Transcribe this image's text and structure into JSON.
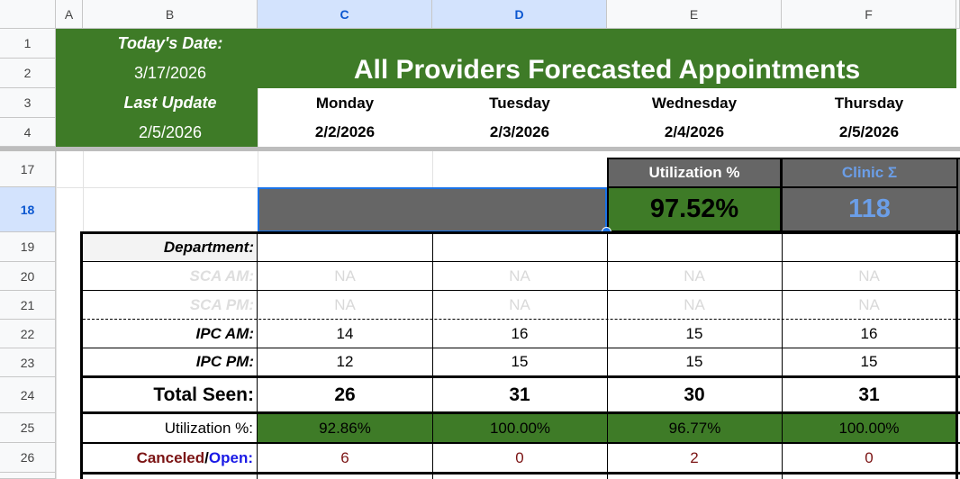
{
  "sheet": {
    "column_headers": [
      "A",
      "B",
      "C",
      "D",
      "E",
      "F"
    ],
    "row_headers": [
      "1",
      "2",
      "3",
      "4",
      "17",
      "18",
      "19",
      "20",
      "21",
      "22",
      "23",
      "24",
      "25",
      "26"
    ]
  },
  "header": {
    "todays_date_label": "Today's Date:",
    "todays_date_value": "3/17/2026",
    "last_update_label": "Last Update",
    "last_update_value": "2/5/2026",
    "title": "All Providers Forecasted Appointments",
    "days": [
      {
        "name": "Monday",
        "date": "2/2/2026"
      },
      {
        "name": "Tuesday",
        "date": "2/3/2026"
      },
      {
        "name": "Wednesday",
        "date": "2/4/2026"
      },
      {
        "name": "Thursday",
        "date": "2/5/2026"
      }
    ]
  },
  "summary": {
    "utilization_label": "Utilization %",
    "utilization_value": "97.52%",
    "clinic_label": "Clinic Σ",
    "clinic_value": "118"
  },
  "table": {
    "department_label": "Department:",
    "rows": [
      {
        "label": "SCA AM:",
        "values": [
          "NA",
          "NA",
          "NA",
          "NA"
        ]
      },
      {
        "label": "SCA PM:",
        "values": [
          "NA",
          "NA",
          "NA",
          "NA"
        ]
      },
      {
        "label": "IPC AM:",
        "values": [
          "14",
          "16",
          "15",
          "16"
        ]
      },
      {
        "label": "IPC PM:",
        "values": [
          "12",
          "15",
          "15",
          "15"
        ]
      }
    ],
    "total_label": "Total Seen:",
    "totals": [
      "26",
      "31",
      "30",
      "31"
    ],
    "utilization_label": "Utilization %:",
    "utilization": [
      "92.86%",
      "100.00%",
      "96.77%",
      "100.00%"
    ],
    "canceled_label": "Canceled",
    "slash": "/",
    "open_label": "Open:",
    "canceled_open": [
      "6",
      "0",
      "2",
      "0"
    ]
  },
  "colors": {
    "green": "#3e7b27",
    "dark_gray": "#666666",
    "selection": "#1a73e8",
    "canceled": "#7b1414",
    "open": "#1a1ae6",
    "clinic": "#6b9ee8"
  }
}
